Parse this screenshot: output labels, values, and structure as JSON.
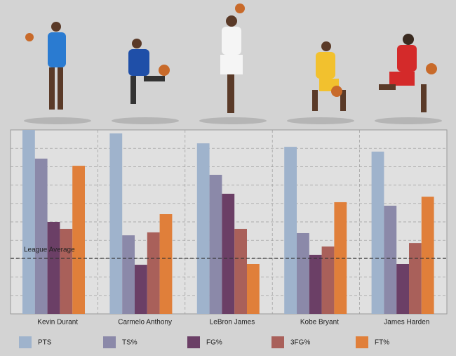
{
  "chart_data": {
    "type": "bar",
    "categories": [
      "Kevin Durant",
      "Carmelo Anthony",
      "LeBron James",
      "Kobe Bryant",
      "James Harden"
    ],
    "series": [
      {
        "name": "PTS",
        "color": "#9fb3cc",
        "values": [
          10,
          9.81,
          9.27,
          9.08,
          8.82
        ]
      },
      {
        "name": "TS%",
        "color": "#8b89a9",
        "values": [
          8.44,
          4.27,
          7.56,
          4.39,
          5.88
        ]
      },
      {
        "name": "FG%",
        "color": "#6b3f66",
        "values": [
          5.0,
          2.67,
          6.53,
          3.21,
          2.71
        ]
      },
      {
        "name": "3FG%",
        "color": "#a9605a",
        "values": [
          4.62,
          4.43,
          4.62,
          3.66,
          3.85
        ]
      },
      {
        "name": "FT%",
        "color": "#e07f3a",
        "values": [
          8.05,
          5.42,
          2.71,
          6.07,
          6.37
        ]
      }
    ],
    "reference_line": {
      "label": "League Average",
      "value": 3.02
    },
    "ylim": [
      0,
      10
    ],
    "yticks": [
      0,
      1,
      2,
      3,
      4,
      5,
      6,
      7,
      8,
      9,
      10
    ],
    "grid": true
  }
}
